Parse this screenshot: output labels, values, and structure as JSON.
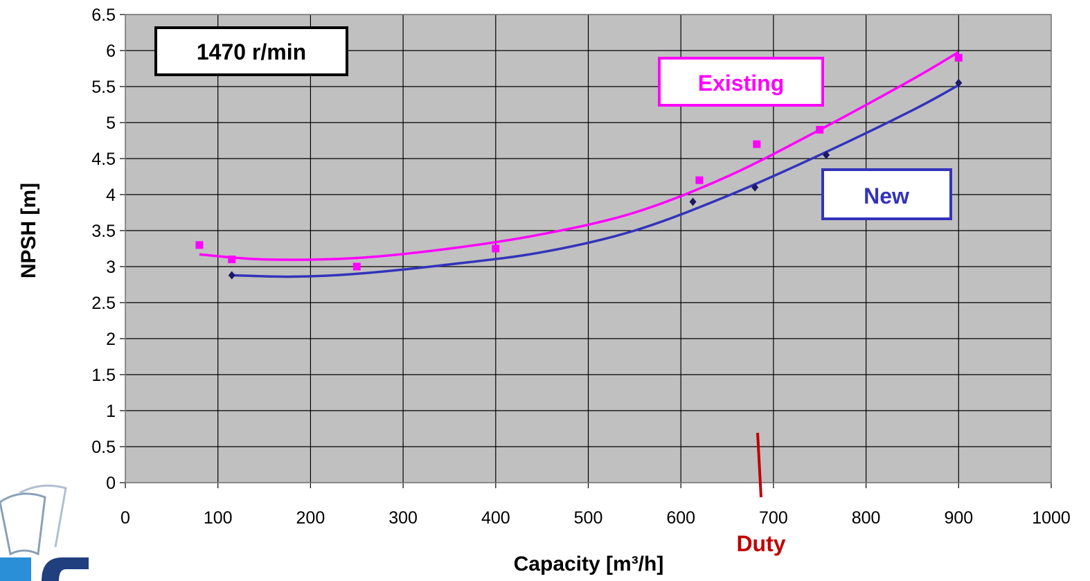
{
  "chart_data": {
    "type": "scatter",
    "title": "",
    "xlabel": "Capacity [m³/h]",
    "ylabel": "NPSH [m]",
    "xlim": [
      0,
      1000
    ],
    "ylim": [
      0,
      6.5
    ],
    "xticks": [
      0,
      100,
      200,
      300,
      400,
      500,
      600,
      700,
      800,
      900,
      1000
    ],
    "yticks": [
      "0",
      "0.5",
      "1",
      "1.5",
      "2",
      "2.5",
      "3",
      "3.5",
      "4",
      "4.5",
      "5",
      "5.5",
      "6",
      "6.5"
    ],
    "grid": true,
    "plot_background": "#c0c0c0",
    "speed_label": "1470 r/min",
    "series": [
      {
        "name": "Existing",
        "color": "#ff00ff",
        "marker": "square",
        "points": [
          [
            80,
            3.3
          ],
          [
            115,
            3.1
          ],
          [
            250,
            3.0
          ],
          [
            400,
            3.25
          ],
          [
            620,
            4.2
          ],
          [
            682,
            4.7
          ],
          [
            750,
            4.9
          ],
          [
            900,
            5.9
          ]
        ],
        "trend_curve": [
          [
            80,
            3.17
          ],
          [
            150,
            3.1
          ],
          [
            250,
            3.12
          ],
          [
            350,
            3.25
          ],
          [
            450,
            3.45
          ],
          [
            550,
            3.75
          ],
          [
            650,
            4.25
          ],
          [
            750,
            4.9
          ],
          [
            850,
            5.6
          ],
          [
            900,
            5.98
          ]
        ]
      },
      {
        "name": "New",
        "color": "#3333bb",
        "marker": "diamond",
        "points": [
          [
            115,
            2.88
          ],
          [
            613,
            3.9
          ],
          [
            680,
            4.1
          ],
          [
            757,
            4.55
          ],
          [
            900,
            5.55
          ]
        ],
        "trend_curve": [
          [
            115,
            2.88
          ],
          [
            180,
            2.86
          ],
          [
            250,
            2.9
          ],
          [
            350,
            3.03
          ],
          [
            450,
            3.2
          ],
          [
            550,
            3.5
          ],
          [
            650,
            3.98
          ],
          [
            750,
            4.55
          ],
          [
            850,
            5.17
          ],
          [
            900,
            5.52
          ]
        ]
      }
    ],
    "annotations": [
      {
        "text": "Duty",
        "x": 687,
        "color": "#c00000"
      }
    ]
  }
}
